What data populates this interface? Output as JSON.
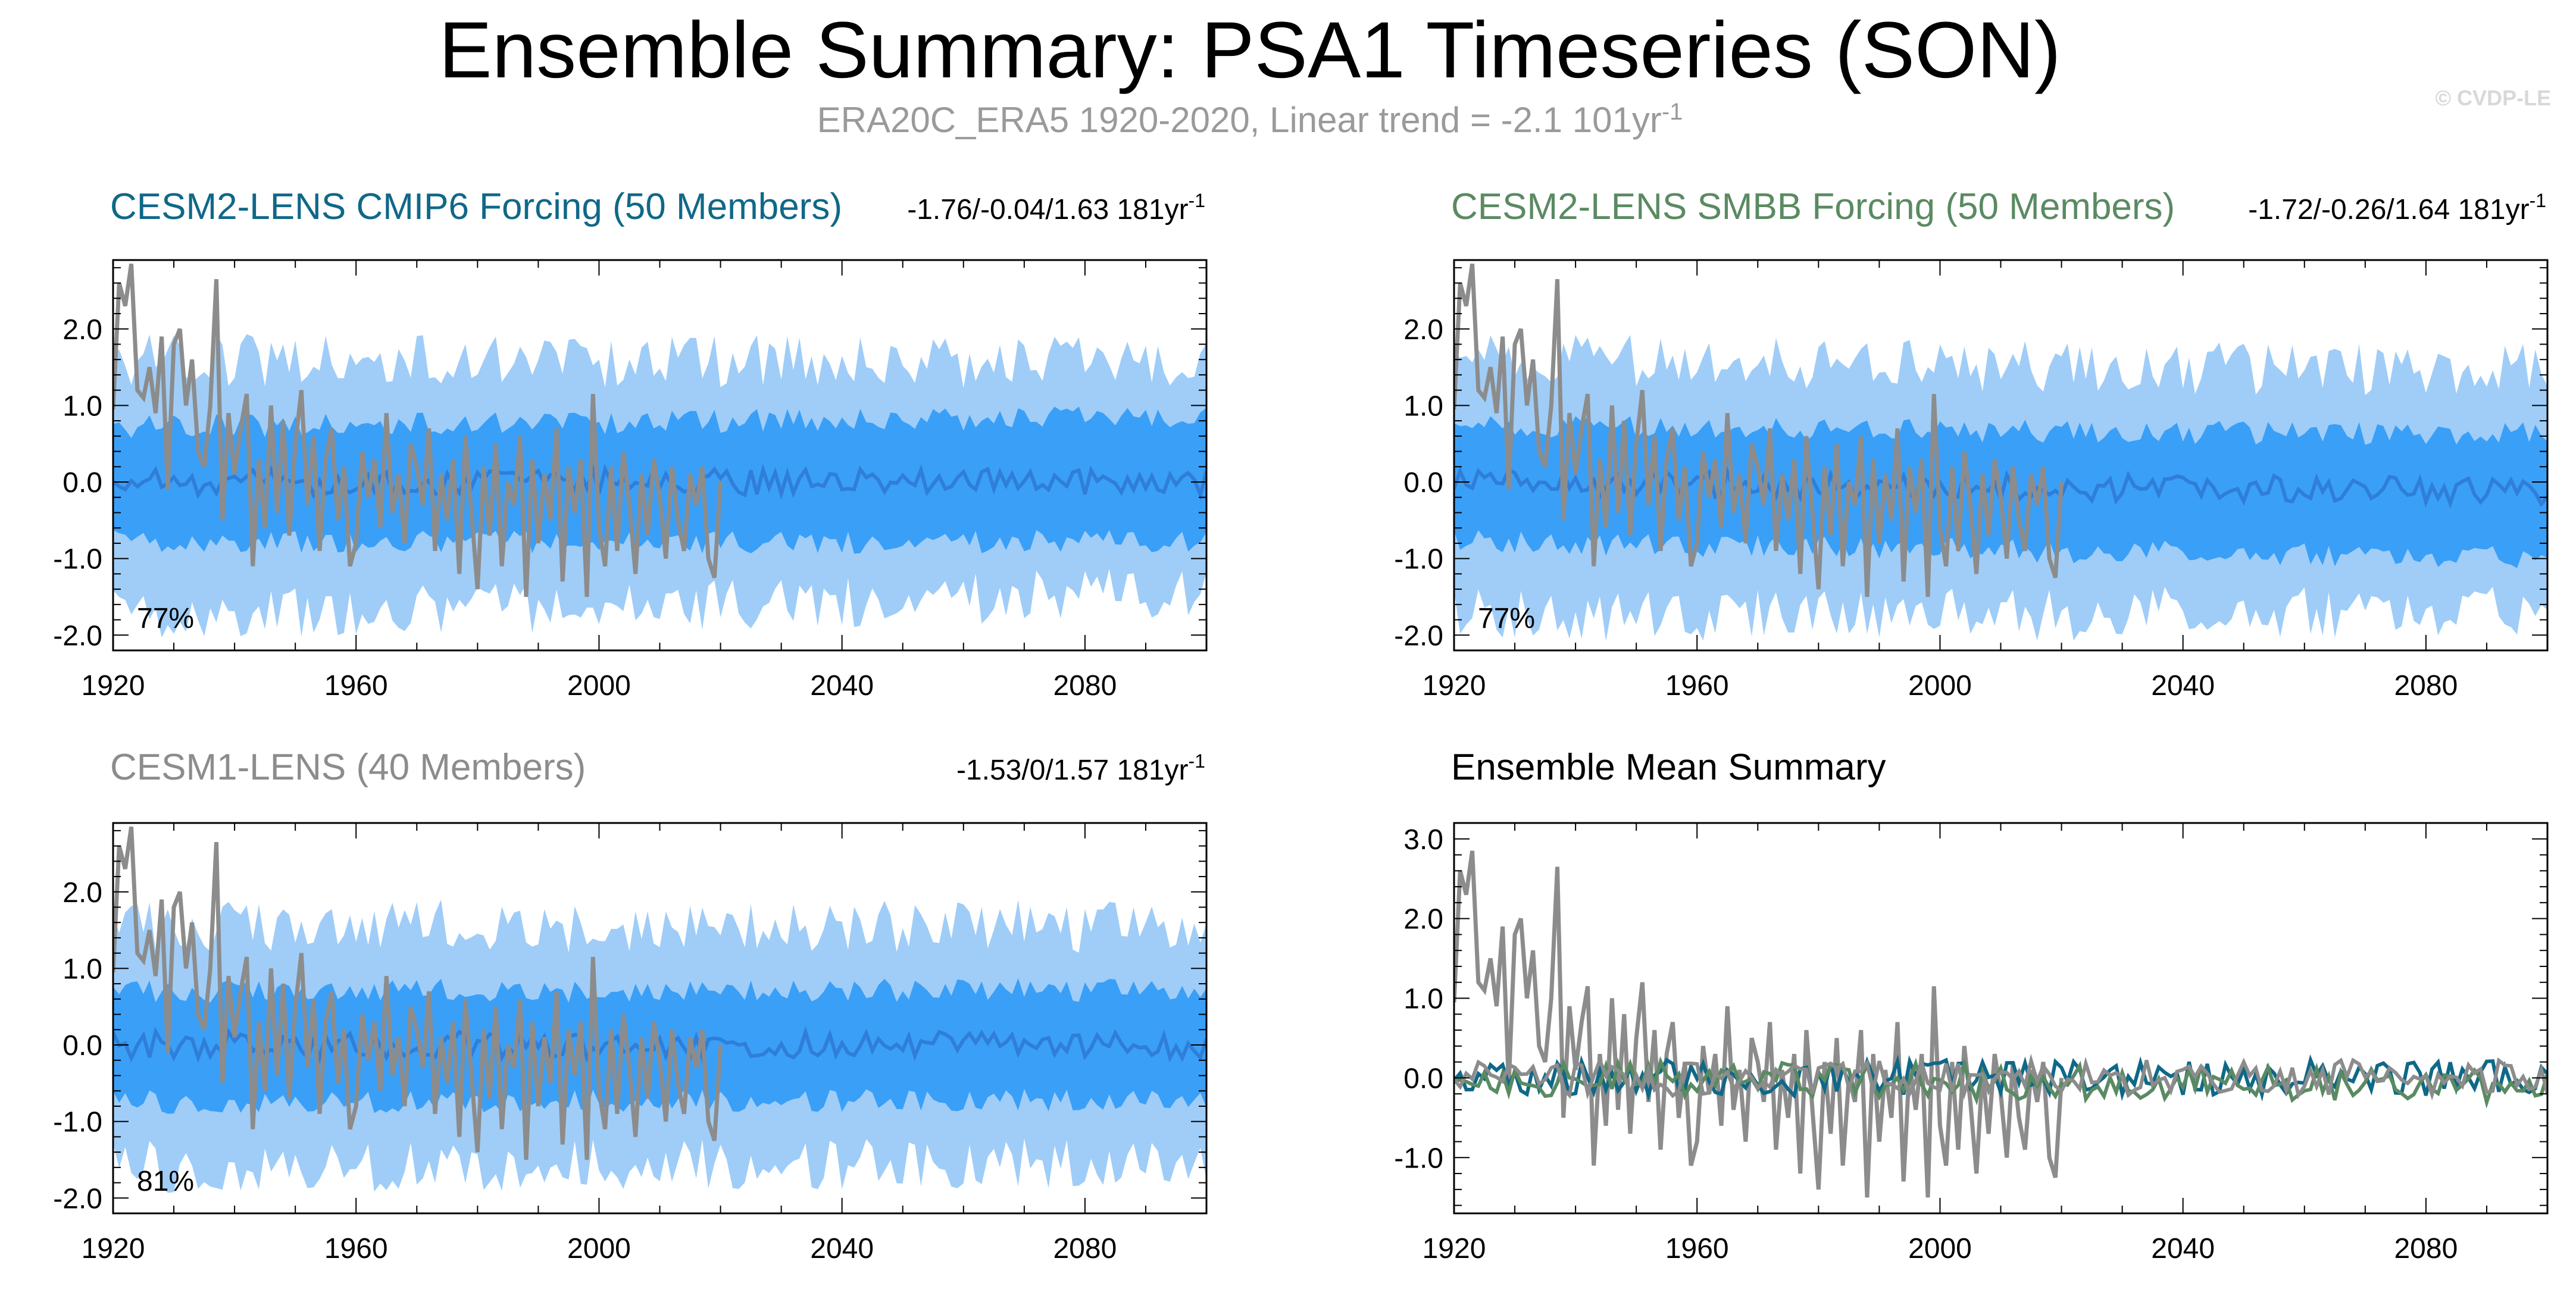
{
  "header": {
    "title": "Ensemble Summary: PSA1 Timeseries (SON)",
    "subtitle_main": "ERA20C_ERA5 1920-2020, Linear trend = -2.1 101yr",
    "subtitle_sup": "-1",
    "copyright": "© CVDP-LE"
  },
  "colors": {
    "obs": "#8c8c8c",
    "band_outer": "#9fcdf8",
    "band_inner": "#3a9ff7",
    "ens_mean": "#2f7ed8",
    "cesm2_cmip6": "#0f6888",
    "cesm2_smbb": "#5a8a62",
    "cesm1": "#8c8c8c"
  },
  "chart_data": [
    {
      "id": "cesm2_cmip6",
      "type": "area",
      "title": "CESM2-LENS CMIP6 Forcing (50 Members)",
      "title_color": "#0f6888",
      "range_text": "-1.76/-0.04/1.63 181yr",
      "range_sup": "-1",
      "percent_label": "77%",
      "xlim": [
        1920,
        2100
      ],
      "ylim": [
        -2.2,
        2.9
      ],
      "xticks": [
        "1920",
        "1960",
        "2000",
        "2040",
        "2080"
      ],
      "yticks": [
        "-2.0",
        "-1.0",
        "0.0",
        "1.0",
        "2.0"
      ],
      "band_outer": {
        "upper_start": 1.6,
        "upper_end": 1.55,
        "lower_start": -1.75,
        "lower_end": -1.45
      },
      "band_inner": {
        "upper_start": 0.72,
        "upper_end": 0.85,
        "lower_start": -0.78,
        "lower_end": -0.78
      },
      "series": [
        {
          "name": "Ensemble mean",
          "color": "#2f7ed8"
        },
        {
          "name": "ERA20C_ERA5",
          "color": "#8c8c8c"
        }
      ]
    },
    {
      "id": "cesm2_smbb",
      "type": "area",
      "title": "CESM2-LENS SMBB Forcing (50 Members)",
      "title_color": "#5a8a62",
      "range_text": "-1.72/-0.26/1.64 181yr",
      "range_sup": "-1",
      "percent_label": "77%",
      "xlim": [
        1920,
        2100
      ],
      "ylim": [
        -2.2,
        2.9
      ],
      "xticks": [
        "1920",
        "1960",
        "2000",
        "2040",
        "2080"
      ],
      "yticks": [
        "-2.0",
        "-1.0",
        "0.0",
        "1.0",
        "2.0"
      ],
      "band_outer": {
        "upper_start": 1.6,
        "upper_end": 1.45,
        "lower_start": -1.75,
        "lower_end": -1.7
      },
      "band_inner": {
        "upper_start": 0.72,
        "upper_end": 0.62,
        "lower_start": -0.78,
        "lower_end": -1.0
      },
      "series": [
        {
          "name": "Ensemble mean",
          "color": "#2f7ed8"
        },
        {
          "name": "ERA20C_ERA5",
          "color": "#8c8c8c"
        }
      ]
    },
    {
      "id": "cesm1",
      "type": "area",
      "title": "CESM1-LENS (40 Members)",
      "title_color": "#8c8c8c",
      "range_text": "-1.53/0/1.57 181yr",
      "range_sup": "-1",
      "percent_label": "81%",
      "xlim": [
        1920,
        2100
      ],
      "ylim": [
        -2.2,
        2.9
      ],
      "xticks": [
        "1920",
        "1960",
        "2000",
        "2040",
        "2080"
      ],
      "yticks": [
        "-2.0",
        "-1.0",
        "0.0",
        "1.0",
        "2.0"
      ],
      "band_outer": {
        "upper_start": 1.55,
        "upper_end": 1.55,
        "lower_start": -1.6,
        "lower_end": -1.55
      },
      "band_inner": {
        "upper_start": 0.7,
        "upper_end": 0.72,
        "lower_start": -0.75,
        "lower_end": -0.72
      },
      "series": [
        {
          "name": "Ensemble mean",
          "color": "#2f7ed8"
        },
        {
          "name": "ERA20C_ERA5",
          "color": "#8c8c8c"
        }
      ]
    },
    {
      "id": "summary",
      "type": "line",
      "title": "Ensemble Mean Summary",
      "title_color": "#000000",
      "xlim": [
        1920,
        2100
      ],
      "ylim": [
        -1.7,
        3.2
      ],
      "xticks": [
        "1920",
        "1960",
        "2000",
        "2040",
        "2080"
      ],
      "yticks": [
        "-1.0",
        "0.0",
        "1.0",
        "2.0",
        "3.0"
      ],
      "series": [
        {
          "name": "ERA20C_ERA5",
          "color": "#8c8c8c"
        },
        {
          "name": "CESM2-LENS CMIP6 Forcing",
          "color": "#0f6888"
        },
        {
          "name": "CESM2-LENS SMBB Forcing",
          "color": "#5a8a62"
        },
        {
          "name": "CESM1-LENS",
          "color": "#8c8c8c"
        }
      ]
    }
  ],
  "observed": {
    "name": "ERA20C_ERA5",
    "start_year": 1920,
    "values": [
      0.95,
      2.6,
      2.3,
      2.85,
      1.2,
      1.1,
      1.5,
      0.9,
      1.9,
      -0.1,
      1.8,
      2.0,
      1.0,
      1.6,
      0.4,
      0.2,
      1.0,
      2.65,
      -0.5,
      0.9,
      0.1,
      0.7,
      1.15,
      -1.1,
      0.3,
      -0.6,
      1.0,
      -0.4,
      0.8,
      -0.7,
      0.5,
      1.2,
      -0.3,
      0.6,
      -0.9,
      0.3,
      0.7,
      -0.5,
      0.2,
      -1.1,
      -0.8,
      0.4,
      -0.2,
      0.3,
      -0.6,
      0.9,
      -0.4,
      0.1,
      -0.8,
      0.5,
      0.2,
      -0.3,
      0.7,
      -0.9,
      0.1,
      -0.5,
      0.3,
      -1.2,
      0.6,
      -0.4,
      -1.4,
      0.2,
      -0.7,
      0.5,
      -1.1,
      0.0,
      -0.3,
      0.6,
      -1.5,
      0.3,
      -0.8,
      0.1,
      -0.5,
      0.7,
      -1.3,
      0.2,
      -0.4,
      0.3,
      -1.5,
      1.15,
      -0.6,
      -1.1,
      0.2,
      -0.9,
      0.4,
      -0.3,
      -1.2,
      0.1,
      -0.7,
      0.3,
      -0.2,
      -1.0,
      0.2,
      -0.5,
      -0.9,
      0.1,
      -0.3,
      0.2,
      -1.0,
      -1.25,
      0.0
    ]
  }
}
